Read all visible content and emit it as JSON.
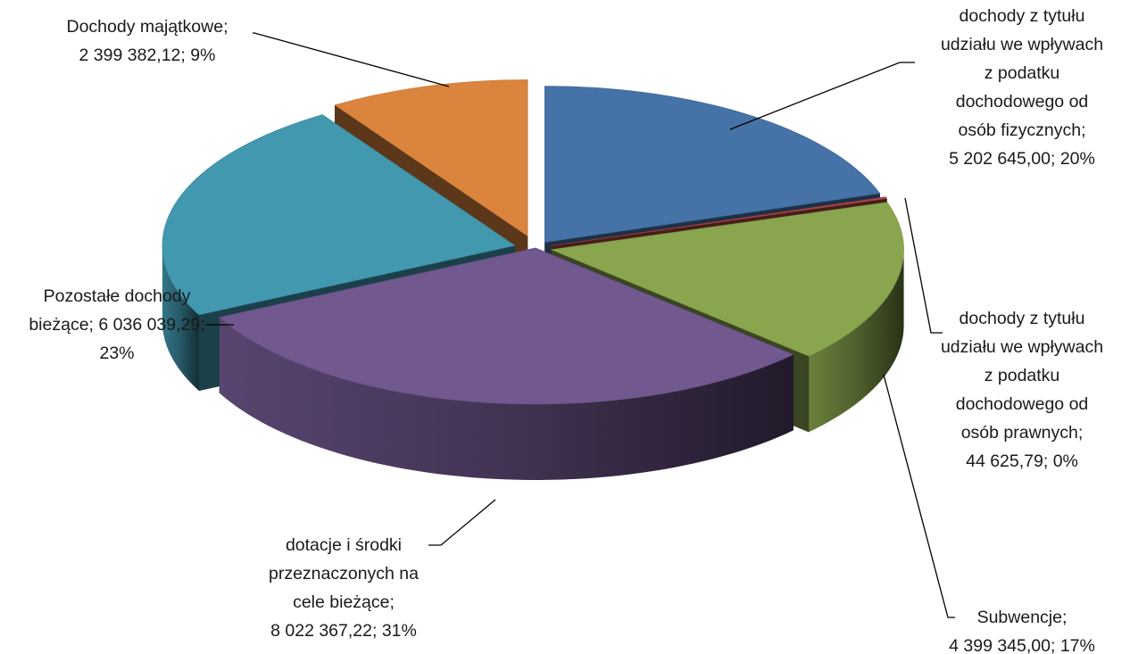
{
  "chart_data": {
    "type": "pie",
    "title": "",
    "three_d": true,
    "exploded": true,
    "slices": [
      {
        "name": "dochody z tytułu udziału we wpływach z podatku dochodowego od osób fizycznych",
        "value": 5202645.0,
        "percent": 20,
        "color": "#4572A7",
        "label_lines": [
          "dochody z tytułu",
          "udziału we wpływach",
          "z podatku",
          "dochodowego od",
          "osób fizycznych;",
          "5 202 645,00; 20%"
        ]
      },
      {
        "name": "dochody z tytułu udziału we wpływach z podatku dochodowego od osób prawnych",
        "value": 44625.79,
        "percent": 0,
        "color": "#AA4643",
        "label_lines": [
          "dochody z tytułu",
          "udziału we wpływach",
          "z podatku",
          "dochodowego od",
          "osób prawnych;",
          "44 625,79; 0%"
        ]
      },
      {
        "name": "Subwencje",
        "value": 4399345.0,
        "percent": 17,
        "color": "#89A54E",
        "label_lines": [
          "Subwencje;",
          "4 399 345,00; 17%"
        ]
      },
      {
        "name": "dotacje i środki przeznaczonych na cele bieżące",
        "value": 8022367.22,
        "percent": 31,
        "color": "#71588F",
        "label_lines": [
          "dotacje i środki",
          "przeznaczonych na",
          "cele bieżące;",
          "8 022 367,22; 31%"
        ]
      },
      {
        "name": "Pozostałe dochody bieżące",
        "value": 6036039.29,
        "percent": 23,
        "color": "#4198AF",
        "label_lines": [
          "Pozostałe dochody",
          "bieżące; 6 036 039,29;",
          "23%"
        ]
      },
      {
        "name": "Dochody majątkowe",
        "value": 2399382.12,
        "percent": 9,
        "color": "#DB843D",
        "label_lines": [
          "Dochody majątkowe;",
          "2 399 382,12; 9%"
        ]
      }
    ]
  }
}
